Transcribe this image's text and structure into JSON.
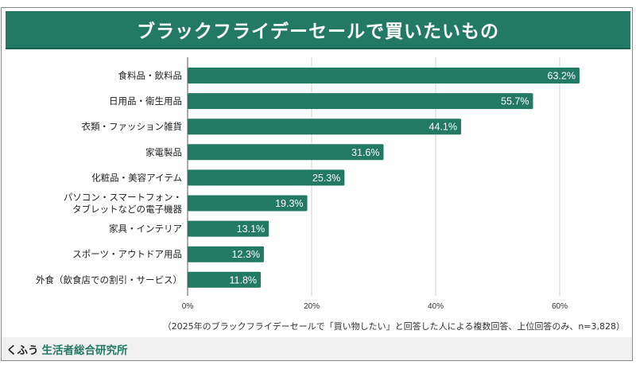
{
  "colors": {
    "bar": "#227a65",
    "title_bg": "#227a65",
    "grid": "#d0d0d0",
    "axis": "#555555",
    "brand_accent": "#227a65"
  },
  "footer": {
    "brand_prefix": "くふう",
    "brand_name": "生活者総合研究所"
  },
  "chart_data": {
    "type": "bar",
    "orientation": "horizontal",
    "title": "ブラックフライデーセールで買いたいもの",
    "note": "（2025年のブラックフライデーセールで「買い物したい」と回答した人による複数回答、上位回答のみ、n=3,828）",
    "categories": [
      [
        "食料品・飲料品"
      ],
      [
        "日用品・衛生用品"
      ],
      [
        "衣類・ファッション雑貨"
      ],
      [
        "家電製品"
      ],
      [
        "化粧品・美容アイテム"
      ],
      [
        "パソコン・スマートフォン・",
        "タブレットなどの電子機器"
      ],
      [
        "家具・インテリア"
      ],
      [
        "スポーツ・アウトドア用品"
      ],
      [
        "外食（飲食店での割引・サービス）"
      ]
    ],
    "values": [
      63.2,
      55.7,
      44.1,
      31.6,
      25.3,
      19.3,
      13.1,
      12.3,
      11.8
    ],
    "value_labels": [
      "63.2%",
      "55.7%",
      "44.1%",
      "31.6%",
      "25.3%",
      "19.3%",
      "13.1%",
      "12.3%",
      "11.8%"
    ],
    "xlim": [
      0,
      70
    ],
    "ticks": [
      0,
      20,
      40,
      60
    ],
    "tick_labels": [
      "0%",
      "20%",
      "40%",
      "60%"
    ],
    "grid": true,
    "xlabel": "",
    "ylabel": ""
  }
}
